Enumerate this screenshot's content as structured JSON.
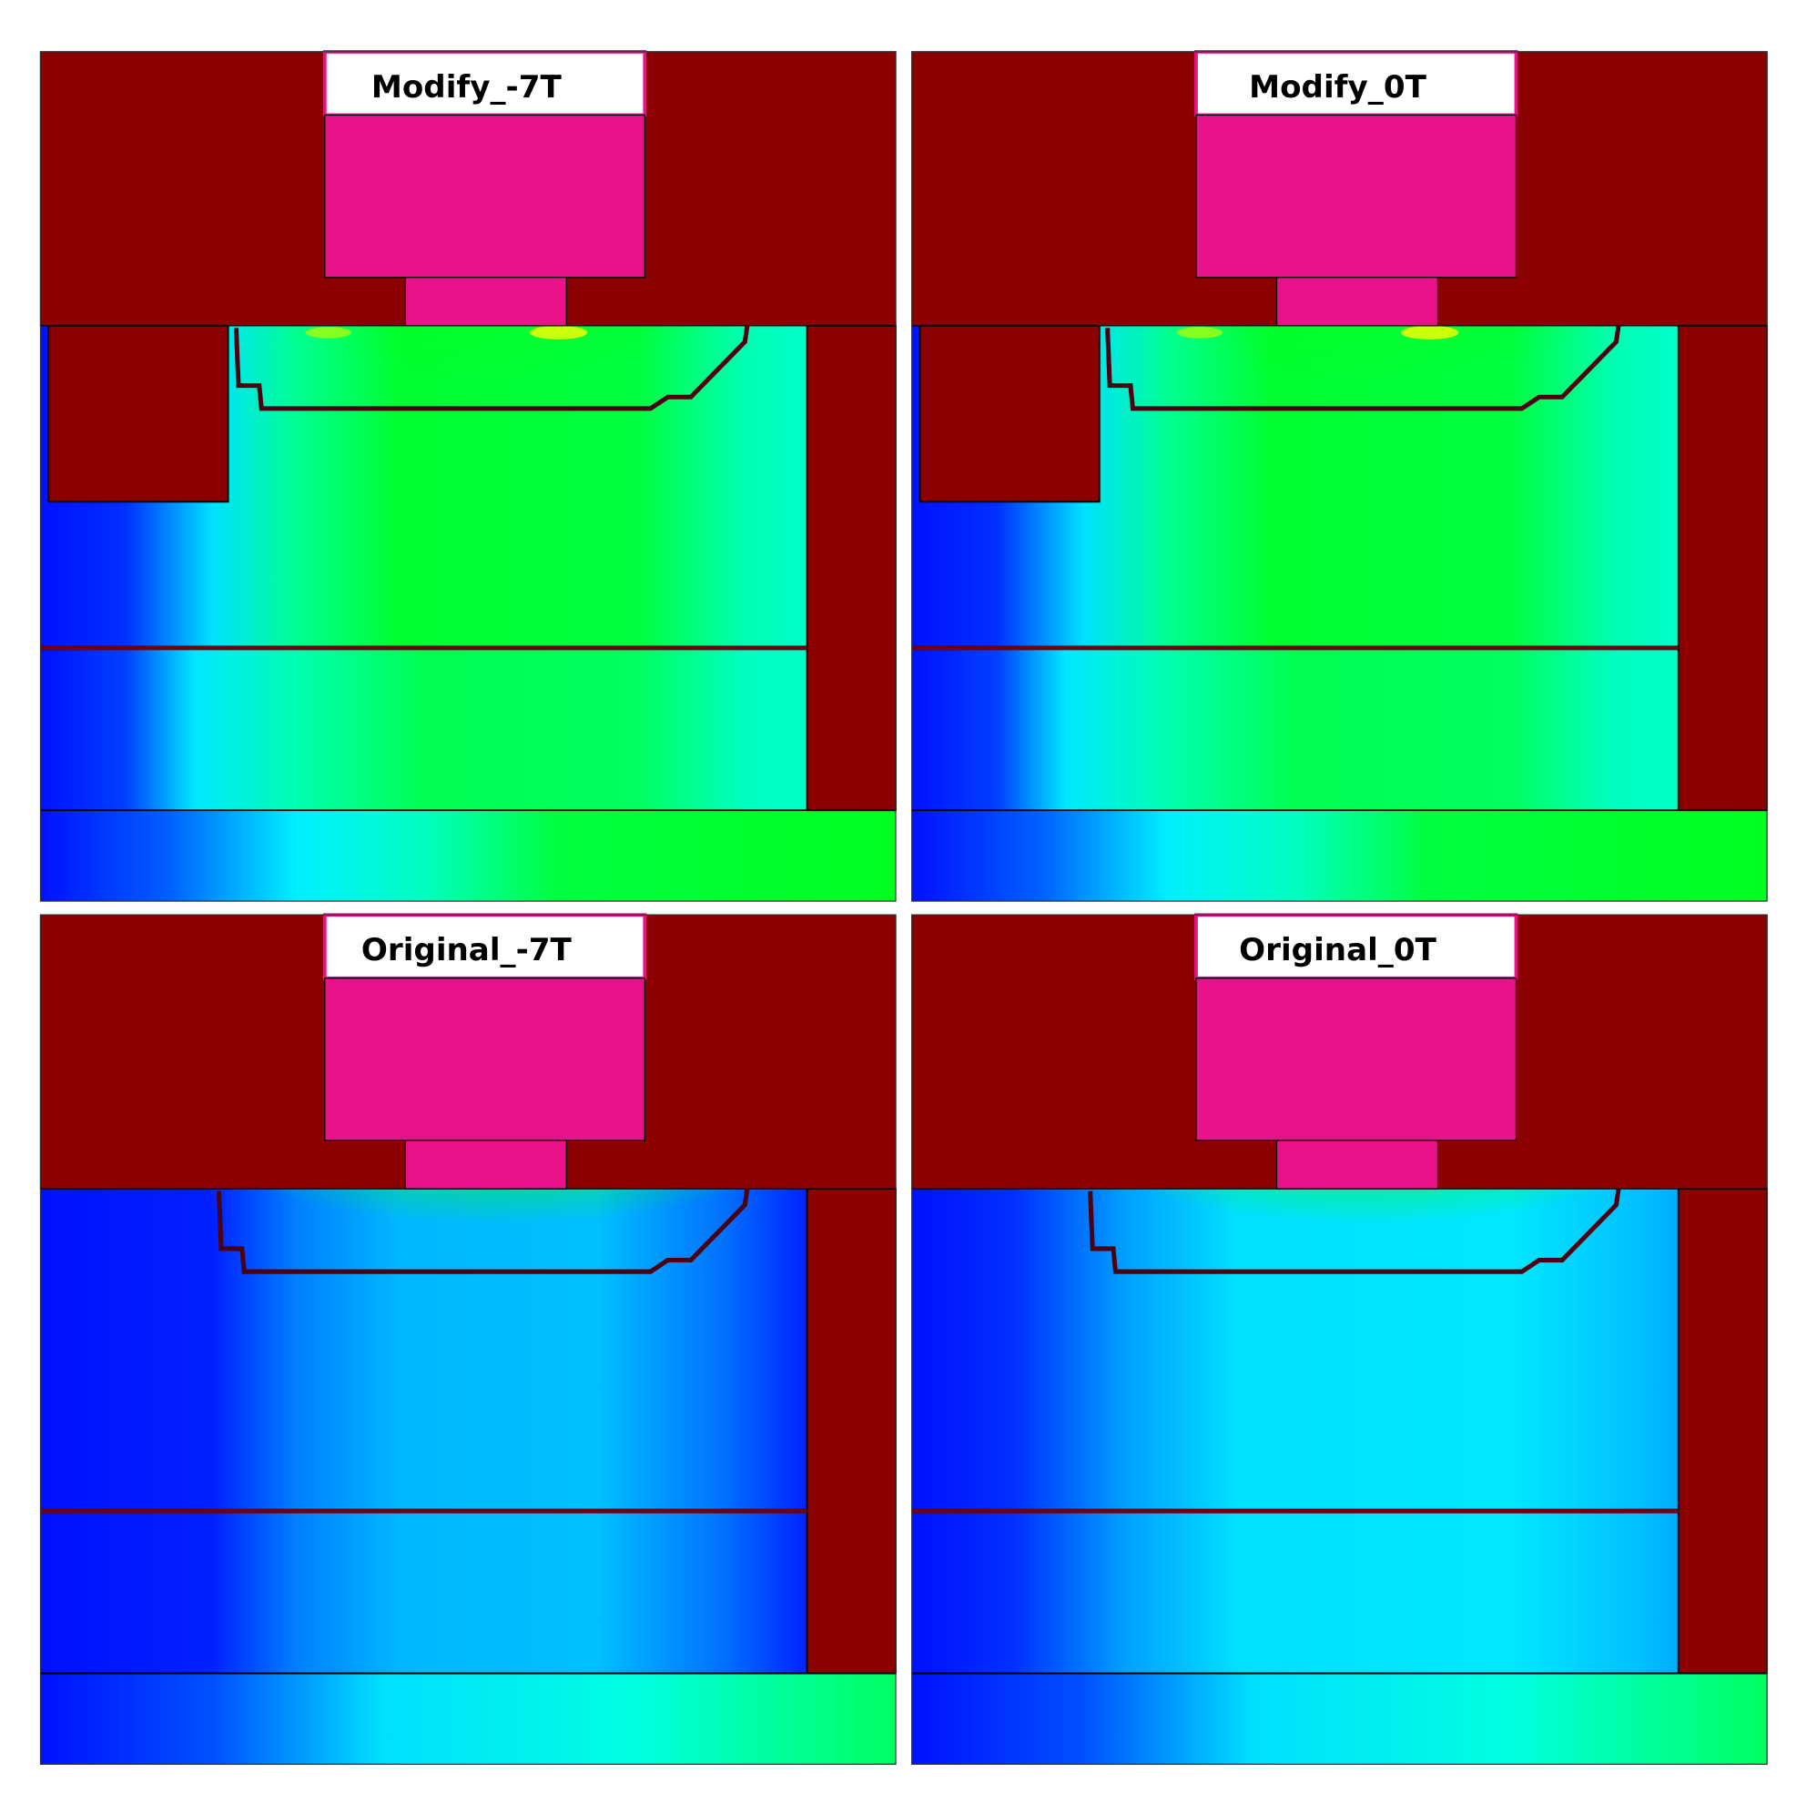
{
  "panels": [
    {
      "title": "Modify_-7T"
    },
    {
      "title": "Modify_0T"
    },
    {
      "title": "Original_-7T"
    },
    {
      "title": "Original_0T"
    }
  ]
}
